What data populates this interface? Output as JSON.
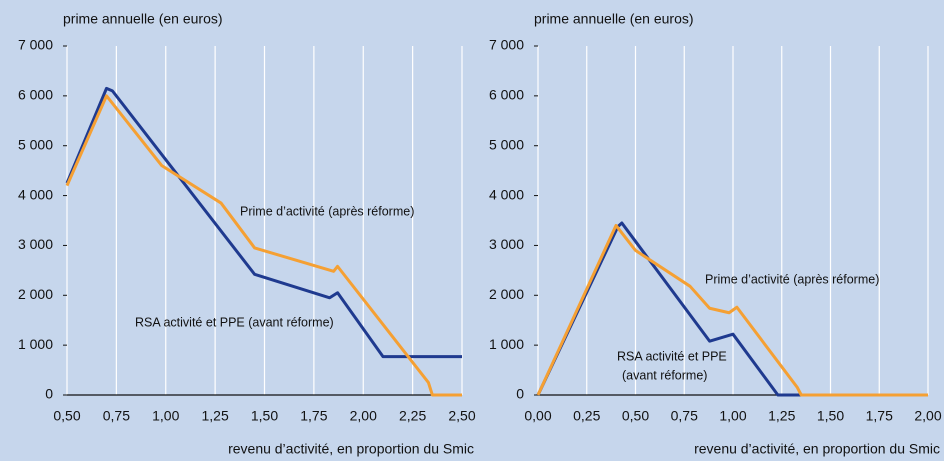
{
  "chart_data": [
    {
      "type": "line",
      "ylabel": "prime annuelle (en euros)",
      "xlabel": "revenu d’activité, en proportion du Smic",
      "xlim": [
        0.5,
        2.5
      ],
      "ylim": [
        0,
        7000
      ],
      "grid": true,
      "xticks": [
        {
          "value": 0.5,
          "label": "0,50"
        },
        {
          "value": 0.75,
          "label": "0,75"
        },
        {
          "value": 1,
          "label": "1,00"
        },
        {
          "value": 1.25,
          "label": "1,25"
        },
        {
          "value": 1.5,
          "label": "1,50"
        },
        {
          "value": 1.75,
          "label": "1,75"
        },
        {
          "value": 2,
          "label": "2,00"
        },
        {
          "value": 2.25,
          "label": "2,25"
        },
        {
          "value": 2.5,
          "label": "2,50"
        }
      ],
      "yticks": [
        0,
        {
          "value": 1000,
          "label": "1 000"
        },
        {
          "value": 2000,
          "label": "2 000"
        },
        {
          "value": 3000,
          "label": "3 000"
        },
        {
          "value": 4000,
          "label": "4 000"
        },
        {
          "value": 5000,
          "label": "5 000"
        },
        {
          "value": 6000,
          "label": "6 000"
        },
        {
          "value": 7000,
          "label": "7 000"
        }
      ],
      "series": [
        {
          "name": "RSA activité et PPE (avant réforme)",
          "color": "#1f3a8f",
          "x": [
            0.5,
            0.7,
            0.73,
            1.45,
            1.83,
            1.87,
            2.1,
            2.5
          ],
          "values": [
            4250,
            6150,
            6100,
            2420,
            1950,
            2050,
            770,
            770
          ]
        },
        {
          "name": "Prime d’activité (après réforme)",
          "color": "#f5a033",
          "x": [
            0.5,
            0.7,
            0.98,
            1.28,
            1.45,
            1.85,
            1.87,
            2.33,
            2.35,
            2.5
          ],
          "values": [
            4200,
            6000,
            4600,
            3850,
            2950,
            2480,
            2580,
            250,
            0,
            0
          ]
        }
      ]
    },
    {
      "type": "line",
      "ylabel": "prime annuelle (en euros)",
      "xlabel": "revenu d’activité, en proportion du Smic",
      "xlim": [
        0,
        2
      ],
      "ylim": [
        0,
        7000
      ],
      "grid": true,
      "xticks": [
        {
          "value": 0,
          "label": "0,00"
        },
        {
          "value": 0.25,
          "label": "0,25"
        },
        {
          "value": 0.5,
          "label": "0,50"
        },
        {
          "value": 0.75,
          "label": "0,75"
        },
        {
          "value": 1,
          "label": "1,00"
        },
        {
          "value": 1.25,
          "label": "1,25"
        },
        {
          "value": 1.5,
          "label": "1,50"
        },
        {
          "value": 1.75,
          "label": "1,75"
        },
        {
          "value": 2,
          "label": "2,00"
        }
      ],
      "yticks": [
        0,
        {
          "value": 1000,
          "label": "1 000"
        },
        {
          "value": 2000,
          "label": "2 000"
        },
        {
          "value": 3000,
          "label": "3 000"
        },
        {
          "value": 4000,
          "label": "4 000"
        },
        {
          "value": 5000,
          "label": "5 000"
        },
        {
          "value": 6000,
          "label": "6 000"
        },
        {
          "value": 7000,
          "label": "7 000"
        }
      ],
      "series": [
        {
          "name": [
            "RSA activité et PPE",
            "(avant réforme)"
          ],
          "color": "#1f3a8f",
          "x": [
            0,
            0.41,
            0.43,
            0.88,
            1.0,
            1.23,
            2
          ],
          "values": [
            0,
            3380,
            3450,
            1080,
            1220,
            0,
            0
          ]
        },
        {
          "name": "Prime d’activité (après réforme)",
          "color": "#f5a033",
          "x": [
            0,
            0.4,
            0.5,
            0.78,
            0.88,
            0.98,
            1.02,
            1.33,
            1.35,
            2
          ],
          "values": [
            0,
            3400,
            2900,
            2180,
            1740,
            1650,
            1760,
            150,
            0,
            0
          ]
        }
      ]
    }
  ]
}
